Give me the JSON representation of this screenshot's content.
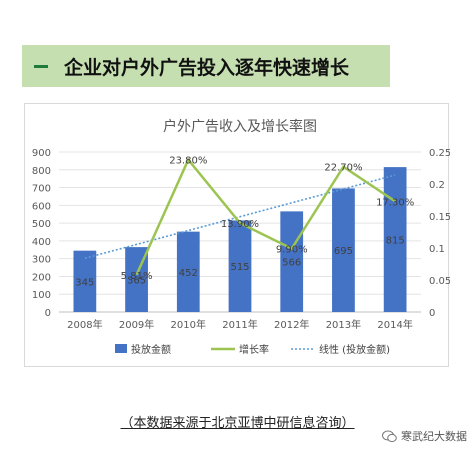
{
  "banner": {
    "title": "企业对户外广告投入逐年快速增长"
  },
  "chart_data": {
    "type": "bar",
    "title": "户外广告收入及增长率图",
    "categories": [
      "2008年",
      "2009年",
      "2010年",
      "2011年",
      "2012年",
      "2013年",
      "2014年"
    ],
    "series": [
      {
        "name": "投放金额",
        "type": "bar",
        "axis": "left",
        "color": "#4472c4",
        "values": [
          345,
          365,
          452,
          515,
          566,
          695,
          815
        ],
        "labels": [
          "345",
          "365",
          "452",
          "515",
          "566",
          "695",
          "815"
        ]
      },
      {
        "name": "增长率",
        "type": "line",
        "axis": "right",
        "color": "#9bc451",
        "values": [
          null,
          0.0581,
          0.238,
          0.139,
          0.099,
          0.227,
          0.173
        ],
        "labels": [
          "",
          "5.81%",
          "23.80%",
          "13.90%",
          "9.90%",
          "22.70%",
          "17.30%"
        ]
      },
      {
        "name": "线性 (投放金额)",
        "type": "trendline",
        "axis": "left",
        "color": "#5b9bd5"
      }
    ],
    "y_left": {
      "min": 0,
      "max": 900,
      "ticks": [
        "0",
        "100",
        "200",
        "300",
        "400",
        "500",
        "600",
        "700",
        "800",
        "900"
      ]
    },
    "y_right": {
      "min": 0,
      "max": 0.25,
      "ticks": [
        "0",
        "0.05",
        "0.1",
        "0.15",
        "0.2",
        "0.25"
      ]
    },
    "grid": true,
    "legend": "bottom"
  },
  "source": "（本数据来源于北京亚博中研信息咨询）",
  "watermark": {
    "icon": "wechat-icon",
    "text": "寒武纪大数据"
  }
}
